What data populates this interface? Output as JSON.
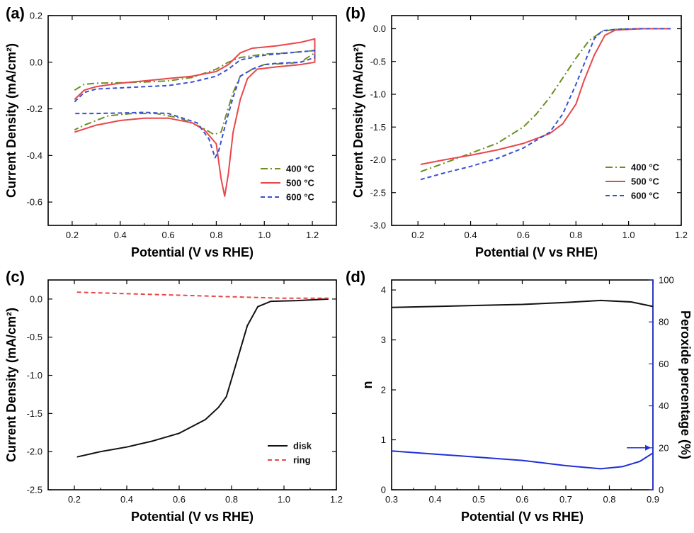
{
  "chart_data": [
    {
      "panel": "(a)",
      "type": "line",
      "xlabel": "Potential (V vs RHE)",
      "ylabel": "Current Density (mA/cm²)",
      "xlim": [
        0.1,
        1.3
      ],
      "ylim": [
        -0.7,
        0.2
      ],
      "xticks": [
        0.2,
        0.4,
        0.6,
        0.8,
        1.0,
        1.2
      ],
      "xtick_labels": [
        "0.2",
        "0.4",
        "0.6",
        "0.8",
        "1.0",
        "1.2"
      ],
      "yticks": [
        0.2,
        0.0,
        -0.2,
        -0.4,
        -0.6
      ],
      "ytick_labels": [
        "0.2",
        "0.0",
        "-0.2",
        "-0.4",
        "-0.6"
      ],
      "legend_position": "bottom-right",
      "series": [
        {
          "name": "400 °C",
          "color": "#6b8e23",
          "dash": "dashdot",
          "points": [
            [
              0.21,
              -0.12
            ],
            [
              0.25,
              -0.095
            ],
            [
              0.3,
              -0.09
            ],
            [
              0.4,
              -0.088
            ],
            [
              0.5,
              -0.085
            ],
            [
              0.6,
              -0.08
            ],
            [
              0.7,
              -0.065
            ],
            [
              0.8,
              -0.03
            ],
            [
              0.85,
              0.0
            ],
            [
              0.9,
              0.02
            ],
            [
              1.0,
              0.035
            ],
            [
              1.1,
              0.04
            ],
            [
              1.21,
              0.05
            ],
            [
              1.21,
              0.04
            ],
            [
              1.15,
              0.0
            ],
            [
              1.1,
              -0.005
            ],
            [
              1.0,
              -0.01
            ],
            [
              0.95,
              -0.03
            ],
            [
              0.9,
              -0.06
            ],
            [
              0.87,
              -0.13
            ],
            [
              0.84,
              -0.23
            ],
            [
              0.82,
              -0.3
            ],
            [
              0.79,
              -0.31
            ],
            [
              0.74,
              -0.28
            ],
            [
              0.65,
              -0.24
            ],
            [
              0.55,
              -0.22
            ],
            [
              0.45,
              -0.22
            ],
            [
              0.35,
              -0.23
            ],
            [
              0.25,
              -0.27
            ],
            [
              0.21,
              -0.29
            ]
          ]
        },
        {
          "name": "500 °C",
          "color": "#e8474b",
          "dash": "solid",
          "points": [
            [
              0.21,
              -0.16
            ],
            [
              0.25,
              -0.12
            ],
            [
              0.3,
              -0.105
            ],
            [
              0.4,
              -0.09
            ],
            [
              0.5,
              -0.08
            ],
            [
              0.6,
              -0.07
            ],
            [
              0.7,
              -0.06
            ],
            [
              0.8,
              -0.04
            ],
            [
              0.85,
              -0.01
            ],
            [
              0.9,
              0.04
            ],
            [
              0.95,
              0.06
            ],
            [
              1.05,
              0.07
            ],
            [
              1.15,
              0.085
            ],
            [
              1.21,
              0.1
            ],
            [
              1.21,
              0.0
            ],
            [
              1.15,
              -0.01
            ],
            [
              1.05,
              -0.02
            ],
            [
              0.97,
              -0.03
            ],
            [
              0.93,
              -0.07
            ],
            [
              0.9,
              -0.16
            ],
            [
              0.87,
              -0.3
            ],
            [
              0.85,
              -0.48
            ],
            [
              0.835,
              -0.575
            ],
            [
              0.82,
              -0.5
            ],
            [
              0.8,
              -0.35
            ],
            [
              0.75,
              -0.29
            ],
            [
              0.7,
              -0.26
            ],
            [
              0.6,
              -0.24
            ],
            [
              0.5,
              -0.24
            ],
            [
              0.4,
              -0.25
            ],
            [
              0.3,
              -0.27
            ],
            [
              0.21,
              -0.3
            ]
          ]
        },
        {
          "name": "600 °C",
          "color": "#3a4fd0",
          "dash": "dash",
          "points": [
            [
              0.21,
              -0.17
            ],
            [
              0.25,
              -0.13
            ],
            [
              0.3,
              -0.115
            ],
            [
              0.4,
              -0.11
            ],
            [
              0.5,
              -0.105
            ],
            [
              0.6,
              -0.1
            ],
            [
              0.7,
              -0.085
            ],
            [
              0.8,
              -0.06
            ],
            [
              0.85,
              -0.03
            ],
            [
              0.9,
              0.01
            ],
            [
              1.0,
              0.03
            ],
            [
              1.1,
              0.04
            ],
            [
              1.21,
              0.05
            ],
            [
              1.21,
              0.02
            ],
            [
              1.15,
              0.0
            ],
            [
              1.05,
              -0.005
            ],
            [
              1.0,
              -0.01
            ],
            [
              0.95,
              -0.03
            ],
            [
              0.9,
              -0.06
            ],
            [
              0.87,
              -0.15
            ],
            [
              0.84,
              -0.26
            ],
            [
              0.81,
              -0.38
            ],
            [
              0.795,
              -0.41
            ],
            [
              0.77,
              -0.33
            ],
            [
              0.72,
              -0.26
            ],
            [
              0.6,
              -0.22
            ],
            [
              0.5,
              -0.215
            ],
            [
              0.4,
              -0.218
            ],
            [
              0.3,
              -0.22
            ],
            [
              0.21,
              -0.22
            ]
          ]
        }
      ]
    },
    {
      "panel": "(b)",
      "type": "line",
      "xlabel": "Potential (V vs RHE)",
      "ylabel": "Current Density (mA/cm²)",
      "xlim": [
        0.1,
        1.2
      ],
      "ylim": [
        -3.0,
        0.2
      ],
      "xticks": [
        0.2,
        0.4,
        0.6,
        0.8,
        1.0,
        1.2
      ],
      "xtick_labels": [
        "0.2",
        "0.4",
        "0.6",
        "0.8",
        "1.0",
        "1.2"
      ],
      "yticks": [
        0.0,
        -0.5,
        -1.0,
        -1.5,
        -2.0,
        -2.5,
        -3.0
      ],
      "ytick_labels": [
        "0.0",
        "-0.5",
        "-1.0",
        "-1.5",
        "-2.0",
        "-2.5",
        "-3.0"
      ],
      "legend_position": "bottom-right",
      "series": [
        {
          "name": "400 °C",
          "color": "#6b8e23",
          "dash": "dashdot",
          "points": [
            [
              0.21,
              -2.18
            ],
            [
              0.3,
              -2.05
            ],
            [
              0.4,
              -1.9
            ],
            [
              0.5,
              -1.75
            ],
            [
              0.6,
              -1.5
            ],
            [
              0.65,
              -1.3
            ],
            [
              0.7,
              -1.05
            ],
            [
              0.75,
              -0.75
            ],
            [
              0.8,
              -0.45
            ],
            [
              0.85,
              -0.18
            ],
            [
              0.9,
              -0.04
            ],
            [
              0.95,
              -0.01
            ],
            [
              1.05,
              0.0
            ],
            [
              1.16,
              0.0
            ]
          ]
        },
        {
          "name": "500 °C",
          "color": "#e8474b",
          "dash": "solid",
          "points": [
            [
              0.21,
              -2.07
            ],
            [
              0.3,
              -2.0
            ],
            [
              0.4,
              -1.93
            ],
            [
              0.5,
              -1.85
            ],
            [
              0.6,
              -1.75
            ],
            [
              0.7,
              -1.6
            ],
            [
              0.75,
              -1.45
            ],
            [
              0.8,
              -1.15
            ],
            [
              0.83,
              -0.8
            ],
            [
              0.87,
              -0.4
            ],
            [
              0.91,
              -0.1
            ],
            [
              0.95,
              -0.02
            ],
            [
              1.05,
              0.0
            ],
            [
              1.16,
              0.0
            ]
          ]
        },
        {
          "name": "600 °C",
          "color": "#3a4fd0",
          "dash": "dash",
          "points": [
            [
              0.21,
              -2.3
            ],
            [
              0.3,
              -2.2
            ],
            [
              0.4,
              -2.1
            ],
            [
              0.5,
              -1.98
            ],
            [
              0.6,
              -1.82
            ],
            [
              0.7,
              -1.58
            ],
            [
              0.75,
              -1.3
            ],
            [
              0.8,
              -0.85
            ],
            [
              0.84,
              -0.45
            ],
            [
              0.87,
              -0.15
            ],
            [
              0.9,
              -0.03
            ],
            [
              0.95,
              -0.01
            ],
            [
              1.05,
              0.0
            ],
            [
              1.16,
              0.0
            ]
          ]
        }
      ]
    },
    {
      "panel": "(c)",
      "type": "line",
      "xlabel": "Potential (V vs RHE)",
      "ylabel": "Current Density (mA/cm²)",
      "xlim": [
        0.1,
        1.2
      ],
      "ylim": [
        -2.5,
        0.25
      ],
      "xticks": [
        0.2,
        0.4,
        0.6,
        0.8,
        1.0,
        1.2
      ],
      "xtick_labels": [
        "0.2",
        "0.4",
        "0.6",
        "0.8",
        "1.0",
        "1.2"
      ],
      "yticks": [
        0.0,
        -0.5,
        -1.0,
        -1.5,
        -2.0,
        -2.5
      ],
      "ytick_labels": [
        "0.0",
        "-0.5",
        "-1.0",
        "-1.5",
        "-2.0",
        "-2.5"
      ],
      "legend_position": "bottom-right",
      "series": [
        {
          "name": "disk",
          "color": "#111111",
          "dash": "solid",
          "points": [
            [
              0.21,
              -2.07
            ],
            [
              0.3,
              -2.0
            ],
            [
              0.4,
              -1.94
            ],
            [
              0.5,
              -1.86
            ],
            [
              0.6,
              -1.76
            ],
            [
              0.7,
              -1.58
            ],
            [
              0.75,
              -1.42
            ],
            [
              0.78,
              -1.28
            ],
            [
              0.8,
              -1.05
            ],
            [
              0.83,
              -0.7
            ],
            [
              0.86,
              -0.35
            ],
            [
              0.9,
              -0.1
            ],
            [
              0.95,
              -0.03
            ],
            [
              1.05,
              -0.02
            ],
            [
              1.17,
              0.0
            ]
          ]
        },
        {
          "name": "ring",
          "color": "#e8474b",
          "dash": "dash",
          "points": [
            [
              0.21,
              0.09
            ],
            [
              0.4,
              0.07
            ],
            [
              0.6,
              0.05
            ],
            [
              0.8,
              0.03
            ],
            [
              1.0,
              0.01
            ],
            [
              1.17,
              0.01
            ]
          ]
        }
      ]
    },
    {
      "panel": "(d)",
      "type": "line",
      "xlabel": "Potential (V vs RHE)",
      "ylabel": "n",
      "ylabel_right": "Peroxide percentage (%)",
      "xlim": [
        0.3,
        0.9
      ],
      "ylim": [
        0,
        4.2
      ],
      "ylim_right": [
        0,
        100
      ],
      "xticks": [
        0.3,
        0.4,
        0.5,
        0.6,
        0.7,
        0.8,
        0.9
      ],
      "xtick_labels": [
        "0.3",
        "0.4",
        "0.5",
        "0.6",
        "0.7",
        "0.8",
        "0.9"
      ],
      "yticks": [
        0,
        1,
        2,
        3,
        4
      ],
      "ytick_labels": [
        "0",
        "1",
        "2",
        "3",
        "4"
      ],
      "yticks_right": [
        0,
        20,
        40,
        60,
        80,
        100
      ],
      "ytick_labels_right": [
        "0",
        "20",
        "40",
        "60",
        "80",
        "100"
      ],
      "right_axis_color": "#1f2fd8",
      "series": [
        {
          "name": "",
          "axis": "left",
          "color": "#111111",
          "dash": "solid",
          "points": [
            [
              0.3,
              3.65
            ],
            [
              0.4,
              3.67
            ],
            [
              0.5,
              3.69
            ],
            [
              0.6,
              3.71
            ],
            [
              0.7,
              3.75
            ],
            [
              0.78,
              3.79
            ],
            [
              0.85,
              3.76
            ],
            [
              0.9,
              3.67
            ]
          ]
        },
        {
          "name": "",
          "axis": "right",
          "color": "#1f2fd8",
          "dash": "solid",
          "points": [
            [
              0.3,
              18.5
            ],
            [
              0.4,
              17
            ],
            [
              0.5,
              15.5
            ],
            [
              0.6,
              14
            ],
            [
              0.7,
              11.5
            ],
            [
              0.78,
              10
            ],
            [
              0.83,
              11
            ],
            [
              0.87,
              13.5
            ],
            [
              0.9,
              17.5
            ]
          ]
        }
      ]
    }
  ]
}
